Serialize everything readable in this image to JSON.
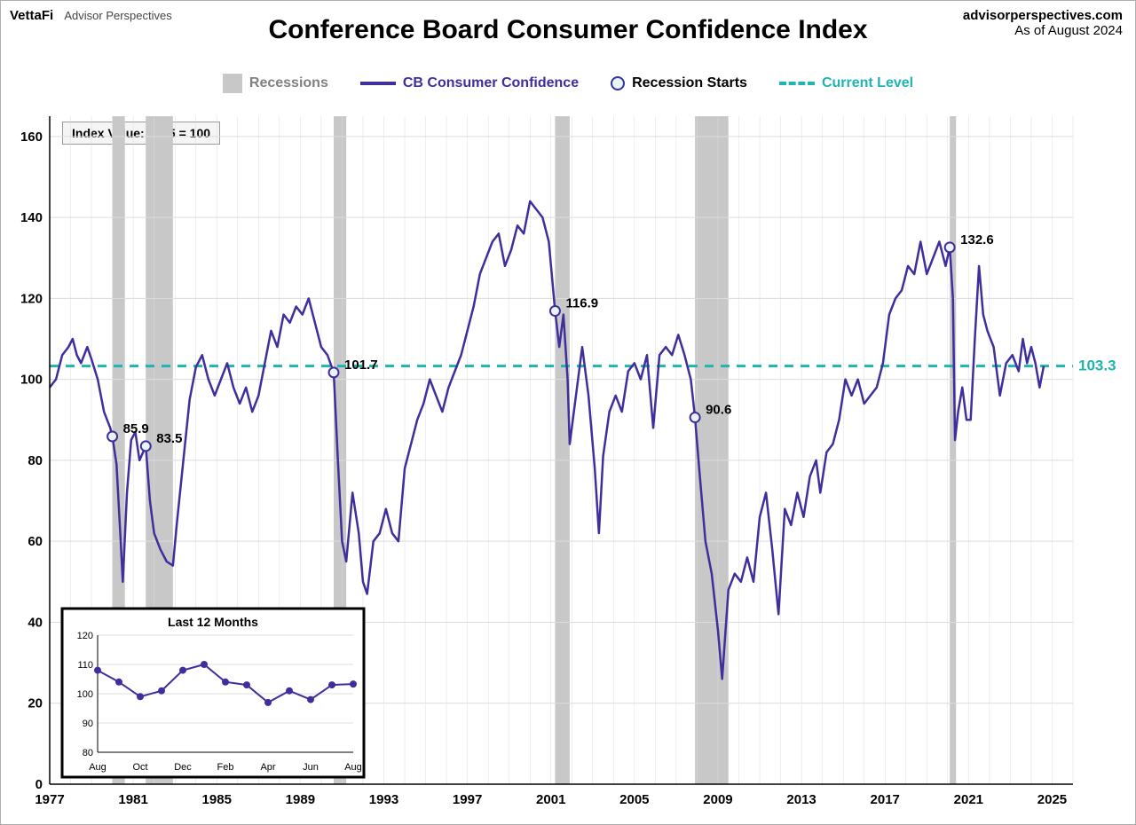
{
  "header": {
    "brand": "VettaFi",
    "sub": "Advisor Perspectives",
    "site": "advisorperspectives.com",
    "asof": "As of August 2024"
  },
  "title": "Conference Board Consumer Confidence Index",
  "index_note": "Index Value: 1985 = 100",
  "legend": {
    "recessions": "Recessions",
    "line": "CB Consumer Confidence",
    "starts": "Recession Starts",
    "current": "Current Level"
  },
  "colors": {
    "line": "#3f2e9c",
    "recession": "#c8c8c8",
    "grid": "#dcdcdc",
    "axis": "#000000",
    "current": "#1fb3b3",
    "marker_fill": "#e8f4f8",
    "marker_stroke": "#3f2e9c",
    "text": "#000000",
    "recession_legend_text": "#808080"
  },
  "chart": {
    "type": "line",
    "x_min": 1977,
    "x_max": 2026,
    "x_ticks": [
      1977,
      1981,
      1985,
      1989,
      1993,
      1997,
      2001,
      2005,
      2009,
      2013,
      2017,
      2021,
      2025
    ],
    "y_min": 0,
    "y_max": 165,
    "y_ticks": [
      0,
      20,
      40,
      60,
      80,
      100,
      120,
      140,
      160
    ],
    "line_width": 2.5,
    "axis_fontsize": 15,
    "current_level": 103.3,
    "recessions": [
      [
        1980.0,
        1980.6
      ],
      [
        1981.6,
        1982.9
      ],
      [
        1990.6,
        1991.2
      ],
      [
        2001.2,
        2001.9
      ],
      [
        2007.9,
        2009.5
      ],
      [
        2020.1,
        2020.4
      ]
    ],
    "recession_markers": [
      {
        "x": 1980.0,
        "y": 85.9,
        "label": "85.9"
      },
      {
        "x": 1981.6,
        "y": 83.5,
        "label": "83.5"
      },
      {
        "x": 1990.6,
        "y": 101.7,
        "label": "101.7"
      },
      {
        "x": 2001.2,
        "y": 116.9,
        "label": "116.9"
      },
      {
        "x": 2007.9,
        "y": 90.6,
        "label": "90.6"
      },
      {
        "x": 2020.1,
        "y": 132.6,
        "label": "132.6"
      }
    ],
    "series": [
      [
        1977.0,
        98
      ],
      [
        1977.3,
        100
      ],
      [
        1977.6,
        106
      ],
      [
        1977.9,
        108
      ],
      [
        1978.1,
        110
      ],
      [
        1978.3,
        106
      ],
      [
        1978.5,
        104
      ],
      [
        1978.8,
        108
      ],
      [
        1979.0,
        105
      ],
      [
        1979.3,
        100
      ],
      [
        1979.6,
        92
      ],
      [
        1979.9,
        88
      ],
      [
        1980.0,
        85.9
      ],
      [
        1980.2,
        79
      ],
      [
        1980.4,
        60
      ],
      [
        1980.5,
        50
      ],
      [
        1980.7,
        72
      ],
      [
        1980.9,
        85
      ],
      [
        1981.1,
        87
      ],
      [
        1981.3,
        80
      ],
      [
        1981.6,
        83.5
      ],
      [
        1981.8,
        70
      ],
      [
        1982.0,
        62
      ],
      [
        1982.3,
        58
      ],
      [
        1982.6,
        55
      ],
      [
        1982.9,
        54
      ],
      [
        1983.1,
        65
      ],
      [
        1983.4,
        80
      ],
      [
        1983.7,
        95
      ],
      [
        1984.0,
        103
      ],
      [
        1984.3,
        106
      ],
      [
        1984.6,
        100
      ],
      [
        1984.9,
        96
      ],
      [
        1985.2,
        100
      ],
      [
        1985.5,
        104
      ],
      [
        1985.8,
        98
      ],
      [
        1986.1,
        94
      ],
      [
        1986.4,
        98
      ],
      [
        1986.7,
        92
      ],
      [
        1987.0,
        96
      ],
      [
        1987.3,
        104
      ],
      [
        1987.6,
        112
      ],
      [
        1987.9,
        108
      ],
      [
        1988.2,
        116
      ],
      [
        1988.5,
        114
      ],
      [
        1988.8,
        118
      ],
      [
        1989.1,
        116
      ],
      [
        1989.4,
        120
      ],
      [
        1989.7,
        114
      ],
      [
        1990.0,
        108
      ],
      [
        1990.3,
        106
      ],
      [
        1990.6,
        101.7
      ],
      [
        1990.8,
        80
      ],
      [
        1991.0,
        60
      ],
      [
        1991.2,
        55
      ],
      [
        1991.5,
        72
      ],
      [
        1991.8,
        62
      ],
      [
        1992.0,
        50
      ],
      [
        1992.2,
        47
      ],
      [
        1992.5,
        60
      ],
      [
        1992.8,
        62
      ],
      [
        1993.1,
        68
      ],
      [
        1993.4,
        62
      ],
      [
        1993.7,
        60
      ],
      [
        1994.0,
        78
      ],
      [
        1994.3,
        84
      ],
      [
        1994.6,
        90
      ],
      [
        1994.9,
        94
      ],
      [
        1995.2,
        100
      ],
      [
        1995.5,
        96
      ],
      [
        1995.8,
        92
      ],
      [
        1996.1,
        98
      ],
      [
        1996.4,
        102
      ],
      [
        1996.7,
        106
      ],
      [
        1997.0,
        112
      ],
      [
        1997.3,
        118
      ],
      [
        1997.6,
        126
      ],
      [
        1997.9,
        130
      ],
      [
        1998.2,
        134
      ],
      [
        1998.5,
        136
      ],
      [
        1998.8,
        128
      ],
      [
        1999.1,
        132
      ],
      [
        1999.4,
        138
      ],
      [
        1999.7,
        136
      ],
      [
        2000.0,
        144
      ],
      [
        2000.3,
        142
      ],
      [
        2000.6,
        140
      ],
      [
        2000.9,
        134
      ],
      [
        2001.2,
        116.9
      ],
      [
        2001.4,
        108
      ],
      [
        2001.6,
        116
      ],
      [
        2001.8,
        100
      ],
      [
        2001.9,
        84
      ],
      [
        2002.2,
        96
      ],
      [
        2002.5,
        108
      ],
      [
        2002.8,
        96
      ],
      [
        2003.1,
        78
      ],
      [
        2003.3,
        62
      ],
      [
        2003.5,
        81
      ],
      [
        2003.8,
        92
      ],
      [
        2004.1,
        96
      ],
      [
        2004.4,
        92
      ],
      [
        2004.7,
        102
      ],
      [
        2005.0,
        104
      ],
      [
        2005.3,
        100
      ],
      [
        2005.6,
        106
      ],
      [
        2005.9,
        88
      ],
      [
        2006.2,
        106
      ],
      [
        2006.5,
        108
      ],
      [
        2006.8,
        106
      ],
      [
        2007.1,
        111
      ],
      [
        2007.4,
        106
      ],
      [
        2007.7,
        100
      ],
      [
        2007.9,
        90.6
      ],
      [
        2008.1,
        78
      ],
      [
        2008.4,
        60
      ],
      [
        2008.7,
        52
      ],
      [
        2009.0,
        38
      ],
      [
        2009.2,
        26
      ],
      [
        2009.5,
        48
      ],
      [
        2009.8,
        52
      ],
      [
        2010.1,
        50
      ],
      [
        2010.4,
        56
      ],
      [
        2010.7,
        50
      ],
      [
        2011.0,
        66
      ],
      [
        2011.3,
        72
      ],
      [
        2011.6,
        58
      ],
      [
        2011.9,
        42
      ],
      [
        2012.2,
        68
      ],
      [
        2012.5,
        64
      ],
      [
        2012.8,
        72
      ],
      [
        2013.1,
        66
      ],
      [
        2013.4,
        76
      ],
      [
        2013.7,
        80
      ],
      [
        2013.9,
        72
      ],
      [
        2014.2,
        82
      ],
      [
        2014.5,
        84
      ],
      [
        2014.8,
        90
      ],
      [
        2015.1,
        100
      ],
      [
        2015.4,
        96
      ],
      [
        2015.7,
        100
      ],
      [
        2016.0,
        94
      ],
      [
        2016.3,
        96
      ],
      [
        2016.6,
        98
      ],
      [
        2016.9,
        104
      ],
      [
        2017.2,
        116
      ],
      [
        2017.5,
        120
      ],
      [
        2017.8,
        122
      ],
      [
        2018.1,
        128
      ],
      [
        2018.4,
        126
      ],
      [
        2018.7,
        134
      ],
      [
        2019.0,
        126
      ],
      [
        2019.3,
        130
      ],
      [
        2019.6,
        134
      ],
      [
        2019.9,
        128
      ],
      [
        2020.1,
        132.6
      ],
      [
        2020.25,
        120
      ],
      [
        2020.35,
        85
      ],
      [
        2020.5,
        92
      ],
      [
        2020.7,
        98
      ],
      [
        2020.9,
        90
      ],
      [
        2021.1,
        90
      ],
      [
        2021.3,
        110
      ],
      [
        2021.5,
        128
      ],
      [
        2021.7,
        116
      ],
      [
        2021.9,
        112
      ],
      [
        2022.2,
        108
      ],
      [
        2022.5,
        96
      ],
      [
        2022.8,
        104
      ],
      [
        2023.1,
        106
      ],
      [
        2023.4,
        102
      ],
      [
        2023.6,
        110
      ],
      [
        2023.8,
        104
      ],
      [
        2024.0,
        108
      ],
      [
        2024.2,
        104
      ],
      [
        2024.4,
        98
      ],
      [
        2024.6,
        103.3
      ]
    ]
  },
  "inset": {
    "title": "Last 12 Months",
    "y_min": 80,
    "y_max": 120,
    "y_ticks": [
      80,
      90,
      100,
      110,
      120
    ],
    "x_labels": [
      "Aug",
      "",
      "Oct",
      "",
      "Dec",
      "",
      "Feb",
      "",
      "Apr",
      "",
      "Jun",
      "",
      "Aug"
    ],
    "values": [
      108,
      104,
      99,
      101,
      108,
      110,
      104,
      103,
      97,
      101,
      98,
      103,
      103.3
    ],
    "line_color": "#3f2e9c",
    "marker_fill": "#3f2e9c",
    "border_color": "#000000",
    "title_fontsize": 14
  }
}
